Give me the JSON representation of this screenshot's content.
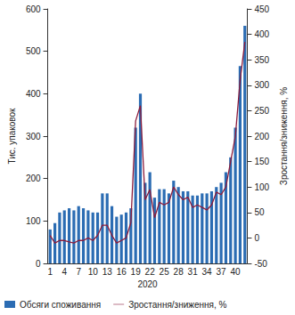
{
  "chart_data": {
    "type": "bar",
    "x_label": "2020",
    "y_label": "Тис. упаковок",
    "y2_label": "Зростання/зниження, %",
    "categories": [
      1,
      null,
      null,
      4,
      null,
      null,
      7,
      null,
      null,
      10,
      null,
      null,
      13,
      null,
      null,
      16,
      null,
      null,
      19,
      null,
      null,
      22,
      null,
      null,
      25,
      null,
      null,
      28,
      null,
      null,
      31,
      null,
      null,
      34,
      null,
      null,
      37,
      null,
      null,
      40,
      null,
      null
    ],
    "series": [
      {
        "name": "Обсяги споживання",
        "type": "bar",
        "color": "#2b6cb3",
        "values": [
          80,
          95,
          120,
          125,
          130,
          125,
          135,
          130,
          125,
          120,
          120,
          165,
          165,
          135,
          110,
          115,
          120,
          130,
          320,
          400,
          190,
          215,
          155,
          175,
          175,
          165,
          195,
          180,
          170,
          170,
          160,
          160,
          165,
          165,
          170,
          180,
          190,
          215,
          250,
          320,
          465,
          560
        ]
      },
      {
        "name": "Зростання/зниження, %",
        "type": "line",
        "axis": "y2",
        "color": "#8b1c3c",
        "marker": "none",
        "values": [
          5,
          -10,
          -5,
          -5,
          -8,
          -10,
          -5,
          -5,
          0,
          -5,
          5,
          25,
          25,
          5,
          -10,
          -5,
          0,
          30,
          230,
          260,
          75,
          95,
          40,
          70,
          65,
          70,
          100,
          85,
          75,
          80,
          60,
          65,
          60,
          55,
          65,
          90,
          85,
          100,
          150,
          200,
          310,
          385
        ]
      }
    ],
    "ylim": [
      0,
      600
    ],
    "yticks": [
      0,
      100,
      200,
      300,
      400,
      500,
      600
    ],
    "y2lim": [
      -50,
      450
    ],
    "y2ticks": [
      -50,
      0,
      50,
      100,
      150,
      200,
      250,
      300,
      350,
      400,
      450
    ],
    "grid": false,
    "legend": "bottom"
  }
}
